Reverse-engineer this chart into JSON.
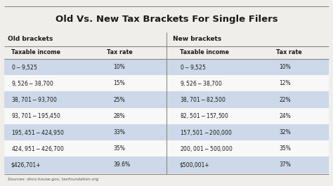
{
  "title": "Old Vs. New Tax Brackets For Single Filers",
  "old_header_label": "Old brackets",
  "new_header_label": "New brackets",
  "old_rows": [
    [
      "$0-$9,525",
      "10%"
    ],
    [
      "$9,526-$38,700",
      "15%"
    ],
    [
      "$38,701-$93,700",
      "25%"
    ],
    [
      "$93,701-$195,450",
      "28%"
    ],
    [
      "$195,451-$424,950",
      "33%"
    ],
    [
      "$424,951-$426,700",
      "35%"
    ],
    [
      "$426,701+",
      "39.6%"
    ]
  ],
  "new_rows": [
    [
      "$0-$9,525",
      "10%"
    ],
    [
      "$9,526-$38,700",
      "12%"
    ],
    [
      "$38,701-$82,500",
      "22%"
    ],
    [
      "$82,501-$157,500",
      "24%"
    ],
    [
      "$157,501-$200,000",
      "32%"
    ],
    [
      "$200,001-$500,000",
      "35%"
    ],
    [
      "$500,001+",
      "37%"
    ]
  ],
  "source_text": "Sources: docs.house.gov, taxfoundation.org",
  "bg_color": "#f0eeeb",
  "row_color_even": "#cdd9e8",
  "row_color_odd": "#f8f8f8",
  "title_color": "#1a1a1a",
  "text_color": "#1a1a1a",
  "divider_color": "#888888",
  "section_label_color": "#1a1a1a",
  "source_color": "#555555"
}
